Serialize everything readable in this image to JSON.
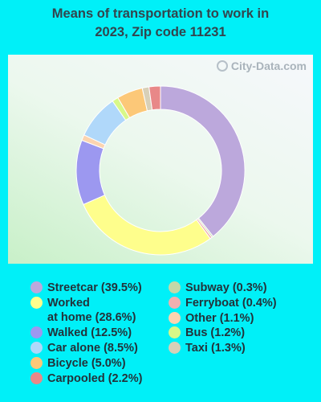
{
  "title_line1": "Means of transportation to work in",
  "title_line2": "2023, Zip code 11231",
  "watermark": "City-Data.com",
  "chart_data": {
    "type": "pie",
    "donut": true,
    "title": "Means of transportation to work in 2023, Zip code 11231",
    "slices": [
      {
        "label": "Streetcar",
        "value": 39.5,
        "color": "#bca8dc"
      },
      {
        "label": "Subway",
        "value": 0.3,
        "color": "#c4d8a8"
      },
      {
        "label": "Ferryboat",
        "value": 0.4,
        "color": "#f0b0b0"
      },
      {
        "label": "Worked at home",
        "value": 28.6,
        "color": "#fefe8c"
      },
      {
        "label": "Walked",
        "value": 12.5,
        "color": "#9c98f0"
      },
      {
        "label": "Other",
        "value": 1.1,
        "color": "#fcd4b0"
      },
      {
        "label": "Car alone",
        "value": 8.5,
        "color": "#b0d8fa"
      },
      {
        "label": "Bus",
        "value": 1.2,
        "color": "#d8f888"
      },
      {
        "label": "Bicycle",
        "value": 5.0,
        "color": "#fcc878"
      },
      {
        "label": "Taxi",
        "value": 1.3,
        "color": "#d8d0b8"
      },
      {
        "label": "Carpooled",
        "value": 2.2,
        "color": "#e88888"
      }
    ]
  },
  "legend": {
    "left": [
      {
        "text": "Streetcar (39.5%)",
        "color": "#bca8dc"
      },
      {
        "text": "Worked\nat home (28.6%)",
        "color": "#fefe8c"
      },
      {
        "text": "Walked (12.5%)",
        "color": "#9c98f0"
      },
      {
        "text": "Car alone (8.5%)",
        "color": "#b0d8fa"
      },
      {
        "text": "Bicycle (5.0%)",
        "color": "#fcc878"
      },
      {
        "text": "Carpooled (2.2%)",
        "color": "#e88888"
      }
    ],
    "right": [
      {
        "text": "Subway (0.3%)",
        "color": "#c4d8a8"
      },
      {
        "text": "Ferryboat (0.4%)",
        "color": "#f0b0b0"
      },
      {
        "text": "Other (1.1%)",
        "color": "#fcd4b0"
      },
      {
        "text": "Bus (1.2%)",
        "color": "#d8f888"
      },
      {
        "text": "Taxi (1.3%)",
        "color": "#d8d0b8"
      }
    ]
  }
}
